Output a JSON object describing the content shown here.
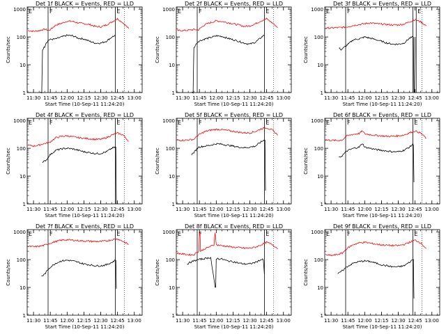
{
  "colors": {
    "background": "#ffffff",
    "events": "#000000",
    "lld": "#ff0000",
    "axes": "#000000"
  },
  "common": {
    "xlabel": "Start Time (10-Sep-11 11:24:20)",
    "ylabel": "Counts/sec",
    "x_ticks": [
      "11:30",
      "11:45",
      "12:00",
      "12:15",
      "12:30",
      "12:45",
      "13:00"
    ],
    "y_ticks": [
      "1",
      "10",
      "100",
      "1000"
    ],
    "markers": [
      "E",
      "F",
      "E"
    ]
  },
  "chart_data": [
    {
      "type": "line",
      "title": "Det 1f BLACK = Events, RED = LLD",
      "xlim": [
        "11:24:20",
        "13:07"
      ],
      "ylim": [
        1,
        1200
      ],
      "yscale": "log",
      "x_ticks": [
        "11:30",
        "11:45",
        "12:00",
        "12:15",
        "12:30",
        "12:45",
        "13:00"
      ],
      "events_x": [
        "11:36",
        "11:38",
        "11:40",
        "11:41",
        "11:44",
        "11:50",
        "11:55",
        "12:00",
        "12:05",
        "12:10",
        "12:15",
        "12:20",
        "12:25",
        "12:30",
        "12:35",
        "12:40",
        "12:43"
      ],
      "events_y": [
        1,
        35,
        45,
        60,
        80,
        85,
        100,
        115,
        110,
        90,
        85,
        70,
        60,
        60,
        70,
        100,
        115
      ],
      "lld_x": [
        "11:25",
        "11:30",
        "11:35",
        "11:40",
        "11:44",
        "11:50",
        "11:55",
        "12:00",
        "12:05",
        "12:10",
        "12:15",
        "12:20",
        "12:25",
        "12:30",
        "12:35",
        "12:40",
        "12:45",
        "12:50",
        "12:55"
      ],
      "lld_y": [
        170,
        160,
        170,
        190,
        170,
        270,
        310,
        370,
        360,
        320,
        300,
        280,
        240,
        230,
        270,
        350,
        450,
        320,
        200
      ],
      "vlines": [
        "11:43",
        "12:43"
      ],
      "markers": [
        "E",
        "F",
        "E"
      ]
    },
    {
      "type": "line",
      "title": "Det 2f BLACK = Events, RED = LLD",
      "xlim": [
        "11:24:20",
        "13:07"
      ],
      "ylim": [
        1,
        1200
      ],
      "yscale": "log",
      "x_ticks": [
        "11:30",
        "11:45",
        "12:00",
        "12:15",
        "12:30",
        "12:45",
        "13:00"
      ],
      "events_x": [
        "11:38",
        "11:40",
        "11:42",
        "11:44",
        "11:50",
        "11:55",
        "12:00",
        "12:05",
        "12:10",
        "12:15",
        "12:20",
        "12:25",
        "12:30",
        "12:35",
        "12:40",
        "12:43"
      ],
      "events_y": [
        1,
        40,
        55,
        70,
        85,
        95,
        110,
        105,
        90,
        80,
        70,
        60,
        55,
        65,
        95,
        120
      ],
      "lld_x": [
        "11:25",
        "11:30",
        "11:35",
        "11:40",
        "11:44",
        "11:50",
        "11:55",
        "12:00",
        "12:05",
        "12:10",
        "12:15",
        "12:20",
        "12:25",
        "12:30",
        "12:35",
        "12:40",
        "12:45",
        "12:50",
        "12:55"
      ],
      "lld_y": [
        170,
        170,
        175,
        185,
        180,
        280,
        330,
        380,
        360,
        330,
        300,
        270,
        240,
        250,
        300,
        380,
        450,
        320,
        220
      ],
      "vlines": [
        "11:43",
        "12:43"
      ],
      "markers": [
        "E",
        "F",
        "E"
      ]
    },
    {
      "type": "line",
      "title": "Det 3f BLACK = Events, RED = LLD",
      "xlim": [
        "11:24:20",
        "13:07"
      ],
      "ylim": [
        1,
        1200
      ],
      "yscale": "log",
      "x_ticks": [
        "11:30",
        "11:45",
        "12:00",
        "12:15",
        "12:30",
        "12:45",
        "13:00"
      ],
      "events_x": [
        "11:37",
        "11:39",
        "11:44",
        "11:50",
        "11:55",
        "12:00",
        "12:05",
        "12:10",
        "12:15",
        "12:20",
        "12:25",
        "12:30",
        "12:35",
        "12:40",
        "12:43",
        "12:44",
        "12:45"
      ],
      "events_y": [
        40,
        35,
        50,
        80,
        85,
        100,
        90,
        80,
        70,
        60,
        55,
        55,
        60,
        90,
        100,
        1,
        100
      ],
      "lld_x": [
        "11:25",
        "11:30",
        "11:35",
        "11:40",
        "11:44",
        "11:50",
        "11:55",
        "12:00",
        "12:05",
        "12:10",
        "12:15",
        "12:20",
        "12:25",
        "12:30",
        "12:35",
        "12:40",
        "12:45",
        "12:50",
        "12:55"
      ],
      "lld_y": [
        210,
        210,
        215,
        220,
        230,
        260,
        280,
        300,
        320,
        300,
        290,
        280,
        270,
        270,
        290,
        350,
        420,
        350,
        250
      ],
      "vlines": [
        "11:43",
        "12:43",
        "12:46"
      ],
      "markers": [
        "E",
        "F",
        "E"
      ]
    },
    {
      "type": "line",
      "title": "Det 4f BLACK = Events, RED = LLD",
      "xlim": [
        "11:24:20",
        "13:07"
      ],
      "ylim": [
        1,
        1200
      ],
      "yscale": "log",
      "x_ticks": [
        "11:30",
        "11:45",
        "12:00",
        "12:15",
        "12:30",
        "12:45",
        "13:00"
      ],
      "events_x": [
        "11:38",
        "11:40",
        "11:42",
        "11:44",
        "11:50",
        "11:55",
        "12:00",
        "12:05",
        "12:10",
        "12:15",
        "12:20",
        "12:25",
        "12:30",
        "12:35",
        "12:40",
        "12:43",
        "12:44"
      ],
      "events_y": [
        30,
        35,
        40,
        55,
        85,
        95,
        100,
        95,
        85,
        75,
        70,
        65,
        65,
        75,
        100,
        110,
        1
      ],
      "lld_x": [
        "11:25",
        "11:30",
        "11:35",
        "11:40",
        "11:44",
        "11:50",
        "11:55",
        "12:00",
        "12:05",
        "12:10",
        "12:15",
        "12:20",
        "12:25",
        "12:30",
        "12:35",
        "12:40",
        "12:45",
        "12:50",
        "12:55"
      ],
      "lld_y": [
        130,
        120,
        130,
        150,
        160,
        240,
        270,
        280,
        260,
        240,
        230,
        220,
        210,
        210,
        240,
        300,
        350,
        300,
        180
      ],
      "vlines": [
        "11:43",
        "12:43"
      ],
      "markers": [
        "E",
        "F",
        "E"
      ]
    },
    {
      "type": "line",
      "title": "Det 5f BLACK = Events, RED = LLD",
      "xlim": [
        "11:24:20",
        "13:07"
      ],
      "ylim": [
        1,
        1200
      ],
      "yscale": "log",
      "x_ticks": [
        "11:30",
        "11:45",
        "12:00",
        "12:15",
        "12:30",
        "12:45",
        "13:00"
      ],
      "events_x": [
        "11:38",
        "11:40",
        "11:44",
        "11:50",
        "11:55",
        "12:00",
        "12:05",
        "12:10",
        "12:15",
        "12:20",
        "12:25",
        "12:30",
        "12:35",
        "12:40",
        "12:43",
        "12:44"
      ],
      "events_y": [
        60,
        70,
        110,
        120,
        130,
        145,
        140,
        130,
        120,
        110,
        105,
        110,
        120,
        170,
        200,
        3
      ],
      "lld_x": [
        "11:25",
        "11:30",
        "11:35",
        "11:40",
        "11:44",
        "11:50",
        "11:55",
        "12:00",
        "12:05",
        "12:10",
        "12:15",
        "12:20",
        "12:25",
        "12:30",
        "12:35",
        "12:40",
        "12:45",
        "12:50",
        "12:55"
      ],
      "lld_y": [
        200,
        195,
        200,
        210,
        300,
        400,
        450,
        480,
        470,
        440,
        410,
        380,
        360,
        360,
        400,
        500,
        550,
        450,
        300
      ],
      "vlines": [
        "11:43",
        "12:43"
      ],
      "markers": [
        "E",
        "F",
        "E"
      ]
    },
    {
      "type": "line",
      "title": "Det 6f BLACK = Events, RED = LLD",
      "xlim": [
        "11:24:20",
        "13:07"
      ],
      "ylim": [
        1,
        1200
      ],
      "yscale": "log",
      "x_ticks": [
        "11:30",
        "11:45",
        "12:00",
        "12:15",
        "12:30",
        "12:45",
        "13:00"
      ],
      "events_x": [
        "11:37",
        "11:40",
        "11:44",
        "11:50",
        "11:55",
        "11:58",
        "12:00",
        "12:05",
        "12:10",
        "12:15",
        "12:20",
        "12:25",
        "12:30",
        "12:35",
        "12:40",
        "12:43",
        "12:44"
      ],
      "events_y": [
        45,
        55,
        80,
        100,
        110,
        150,
        110,
        100,
        90,
        85,
        80,
        75,
        75,
        85,
        110,
        140,
        6
      ],
      "lld_x": [
        "11:25",
        "11:30",
        "11:35",
        "11:40",
        "11:44",
        "11:50",
        "11:55",
        "11:58",
        "12:00",
        "12:05",
        "12:10",
        "12:15",
        "12:20",
        "12:25",
        "12:30",
        "12:35",
        "12:40",
        "12:45",
        "12:50",
        "12:55"
      ],
      "lld_y": [
        200,
        195,
        190,
        200,
        280,
        320,
        340,
        420,
        330,
        310,
        290,
        280,
        270,
        270,
        280,
        300,
        360,
        420,
        350,
        230
      ],
      "vlines": [
        "11:43",
        "12:43"
      ],
      "markers": [
        "E",
        "F",
        "E"
      ]
    },
    {
      "type": "line",
      "title": "Det 7f BLACK = Events, RED = LLD",
      "xlim": [
        "11:24:20",
        "13:07"
      ],
      "ylim": [
        1,
        1200
      ],
      "yscale": "log",
      "x_ticks": [
        "11:30",
        "11:45",
        "12:00",
        "12:15",
        "12:30",
        "12:45",
        "13:00"
      ],
      "events_x": [
        "11:37",
        "11:40",
        "11:44",
        "11:50",
        "11:55",
        "12:00",
        "12:05",
        "12:10",
        "12:15",
        "12:20",
        "12:25",
        "12:30",
        "12:35",
        "12:40",
        "12:43",
        "12:44"
      ],
      "events_y": [
        25,
        30,
        50,
        75,
        90,
        95,
        90,
        80,
        70,
        65,
        60,
        60,
        65,
        80,
        95,
        9
      ],
      "lld_x": [
        "11:25",
        "11:30",
        "11:35",
        "11:40",
        "11:44",
        "11:50",
        "11:55",
        "12:00",
        "12:05",
        "12:10",
        "12:15",
        "12:20",
        "12:25",
        "12:30",
        "12:35",
        "12:40",
        "12:45",
        "12:50",
        "12:55"
      ],
      "lld_y": [
        300,
        290,
        300,
        330,
        380,
        450,
        500,
        520,
        500,
        480,
        470,
        460,
        450,
        450,
        470,
        520,
        560,
        450,
        350
      ],
      "vlines": [
        "11:43",
        "12:43"
      ],
      "markers": [
        "E",
        "F",
        "E"
      ]
    },
    {
      "type": "line",
      "title": "Det 8f BLACK = Events, RED = LLD",
      "xlim": [
        "11:24:20",
        "13:07"
      ],
      "ylim": [
        1,
        1200
      ],
      "yscale": "log",
      "x_ticks": [
        "11:30",
        "11:45",
        "12:00",
        "12:15",
        "12:30",
        "12:45",
        "13:00"
      ],
      "events_x": [
        "11:34",
        "11:37",
        "11:40",
        "11:44",
        "11:50",
        "11:55",
        "11:59",
        "12:00",
        "12:05",
        "12:10",
        "12:15",
        "12:20",
        "12:25",
        "12:30",
        "12:35",
        "12:40",
        "12:42",
        "12:43"
      ],
      "events_y": [
        70,
        80,
        90,
        100,
        110,
        120,
        10,
        110,
        105,
        90,
        85,
        75,
        70,
        70,
        80,
        100,
        100,
        30
      ],
      "lld_x": [
        "11:25",
        "11:30",
        "11:35",
        "11:40",
        "11:44",
        "11:45",
        "11:46",
        "11:50",
        "11:55",
        "11:58",
        "11:59",
        "12:00",
        "12:05",
        "12:10",
        "12:15",
        "12:20",
        "12:25",
        "12:30",
        "12:35",
        "12:40",
        "12:45",
        "12:50",
        "12:55"
      ],
      "lld_y": [
        170,
        160,
        150,
        150,
        200,
        1000,
        200,
        250,
        300,
        340,
        1000,
        340,
        320,
        300,
        280,
        270,
        260,
        260,
        280,
        340,
        420,
        350,
        250
      ],
      "vlines": [
        "11:43",
        "12:43"
      ],
      "markers": [
        "E",
        "F",
        "E"
      ]
    },
    {
      "type": "line",
      "title": "Det 9f BLACK = Events, RED = LLD",
      "xlim": [
        "11:24:20",
        "13:07"
      ],
      "ylim": [
        1,
        1200
      ],
      "yscale": "log",
      "x_ticks": [
        "11:30",
        "11:45",
        "12:00",
        "12:15",
        "12:30",
        "12:45",
        "13:00"
      ],
      "events_x": [
        "11:36",
        "11:38",
        "11:40",
        "11:44",
        "11:50",
        "11:55",
        "12:00",
        "12:05",
        "12:10",
        "12:15",
        "12:20",
        "12:25",
        "12:30",
        "12:35",
        "12:40",
        "12:43",
        "12:44"
      ],
      "events_y": [
        30,
        35,
        40,
        55,
        75,
        85,
        90,
        85,
        75,
        65,
        60,
        55,
        55,
        60,
        80,
        100,
        4
      ],
      "lld_x": [
        "11:25",
        "11:30",
        "11:35",
        "11:40",
        "11:44",
        "11:50",
        "11:55",
        "12:00",
        "12:05",
        "12:10",
        "12:15",
        "12:20",
        "12:25",
        "12:30",
        "12:35",
        "12:40",
        "12:45",
        "12:50",
        "12:55"
      ],
      "lld_y": [
        150,
        140,
        150,
        170,
        250,
        350,
        400,
        420,
        390,
        360,
        340,
        330,
        320,
        320,
        350,
        420,
        500,
        400,
        250
      ],
      "vlines": [
        "11:43",
        "12:43"
      ],
      "markers": [
        "E",
        "F",
        "E"
      ]
    }
  ]
}
